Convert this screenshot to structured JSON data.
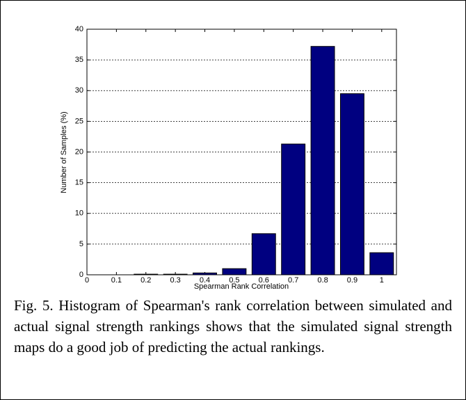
{
  "chart_data": {
    "type": "bar",
    "x": [
      0.1,
      0.2,
      0.3,
      0.4,
      0.5,
      0.6,
      0.7,
      0.8,
      0.9,
      1
    ],
    "values": [
      0,
      0.1,
      0.1,
      0.3,
      1.0,
      6.7,
      21.3,
      37.2,
      29.5,
      3.6
    ],
    "color": "#000080",
    "xlabel": "Spearman Rank Correlation",
    "ylabel": "Number of Samples (%)",
    "xlim": [
      0,
      1.05
    ],
    "xticks": [
      0,
      0.1,
      0.2,
      0.3,
      0.4,
      0.5,
      0.6,
      0.7,
      0.8,
      0.9,
      1
    ],
    "ylim": [
      0,
      40
    ],
    "yticks": [
      0,
      5,
      10,
      15,
      20,
      25,
      30,
      35,
      40
    ],
    "grid": "y"
  },
  "caption": "Fig. 5. Histogram of Spearman's rank correlation between simulated and actual signal strength rankings shows that the simulated signal strength maps do a good job of predicting the actual rankings."
}
